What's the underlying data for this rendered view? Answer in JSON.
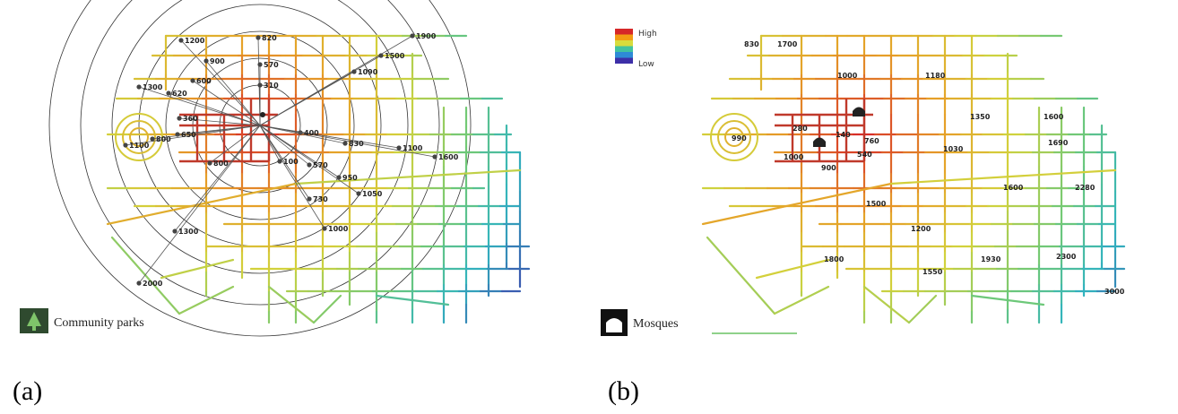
{
  "panel_a": {
    "caption": "(a)",
    "legend_label": "Community parks",
    "legend_icon": "park-tree-icon",
    "distance_labels": [
      "820",
      "1200",
      "1900",
      "1500",
      "570",
      "900",
      "600",
      "1090",
      "1300",
      "620",
      "310",
      "360",
      "650",
      "1100",
      "800",
      "400",
      "830",
      "1100",
      "1600",
      "800",
      "100",
      "570",
      "950",
      "1050",
      "730",
      "1000",
      "1300",
      "2000"
    ]
  },
  "panel_b": {
    "caption": "(b)",
    "legend_label": "Mosques",
    "legend_icon": "mosque-icon",
    "scale": {
      "high_label": "High",
      "low_label": "Low",
      "colors": [
        "#d62728",
        "#f39c12",
        "#d7dc3c",
        "#41c3a0",
        "#2e8bd6",
        "#3d2fa8"
      ]
    },
    "distance_labels": [
      "1700",
      "830",
      "1000",
      "1180",
      "1350",
      "1600",
      "280",
      "140",
      "990",
      "760",
      "1030",
      "1690",
      "1000",
      "540",
      "900",
      "1600",
      "2280",
      "1500",
      "1200",
      "1800",
      "1550",
      "1930",
      "2300",
      "3000"
    ]
  },
  "colors": {
    "high": "#c0392b",
    "mid": "#d8cf3a",
    "low": "#2d2a9c",
    "rings": "#333333"
  }
}
